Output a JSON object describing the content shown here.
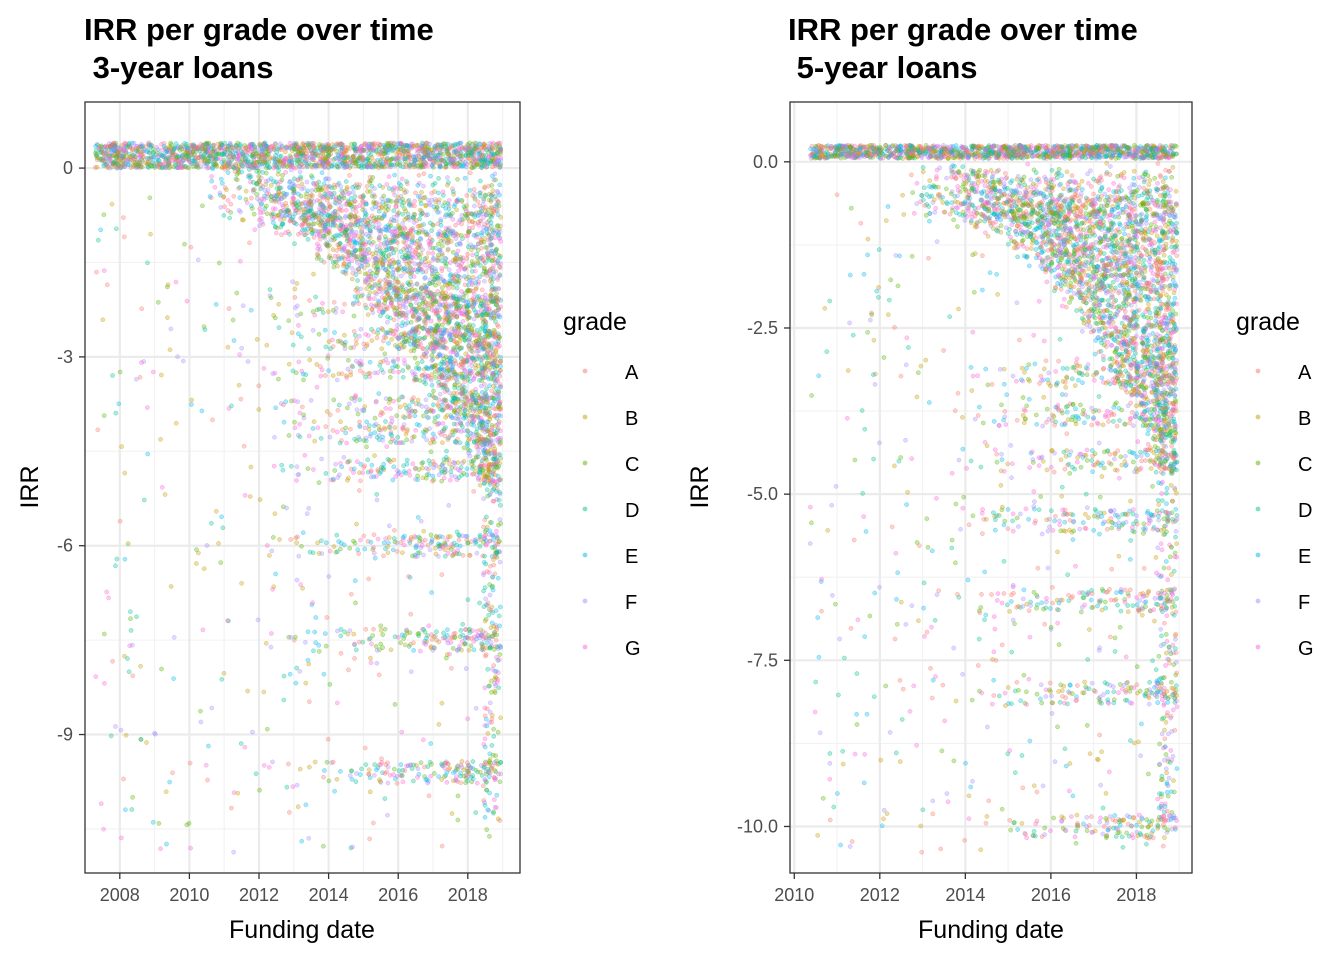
{
  "chart_data": [
    {
      "type": "scatter",
      "title_line1": "IRR per grade over time",
      "title_line2": " 3-year loans",
      "xlabel": "Funding date",
      "ylabel": "IRR",
      "xlim": [
        2007.0,
        2019.5
      ],
      "ylim": [
        -11.2,
        1.05
      ],
      "x_ticks": [
        2008,
        2010,
        2012,
        2014,
        2016,
        2018
      ],
      "x_tick_labels": [
        "2008",
        "2010",
        "2012",
        "2014",
        "2016",
        "2018"
      ],
      "y_ticks": [
        0,
        -3,
        -6,
        -9
      ],
      "y_tick_labels": [
        "0",
        "-3",
        "-6",
        "-9"
      ],
      "y_minor_ticks": [
        1.5,
        -1.5,
        -4.5,
        -7.5,
        -10.5
      ],
      "data_start": 2007.3,
      "data_end": 2018.95,
      "top_bands": [
        0.3,
        0.1
      ],
      "loss_bands": [
        -2.2,
        -2.7,
        -3.2,
        -3.8,
        -4.2,
        -4.8,
        -6.0,
        -7.5,
        -9.6
      ],
      "legend_title": "grade",
      "seed": 11
    },
    {
      "type": "scatter",
      "title_line1": "IRR per grade over time",
      "title_line2": " 5-year loans",
      "xlabel": "Funding date",
      "ylabel": "IRR",
      "xlim": [
        2009.9,
        2019.3
      ],
      "ylim": [
        -10.7,
        0.9
      ],
      "x_ticks": [
        2010,
        2012,
        2014,
        2016,
        2018
      ],
      "x_tick_labels": [
        "2010",
        "2012",
        "2014",
        "2016",
        "2018"
      ],
      "y_ticks": [
        0.0,
        -2.5,
        -5.0,
        -7.5,
        -10.0
      ],
      "y_tick_labels": [
        "0.0",
        "-2.5",
        "-5.0",
        "-7.5",
        "-10.0"
      ],
      "y_minor_ticks": [
        -1.25,
        -3.75,
        -6.25,
        -8.75
      ],
      "data_start": 2010.35,
      "data_end": 2018.95,
      "top_bands": [
        0.15
      ],
      "loss_bands": [
        -3.2,
        -3.8,
        -4.5,
        -5.4,
        -6.6,
        -8.0,
        -10.0
      ],
      "legend_title": "grade",
      "seed": 29
    }
  ],
  "legend": {
    "grades": [
      {
        "label": "A",
        "color": "#F8766D"
      },
      {
        "label": "B",
        "color": "#C49A00"
      },
      {
        "label": "C",
        "color": "#53B400"
      },
      {
        "label": "D",
        "color": "#00C094"
      },
      {
        "label": "E",
        "color": "#00B6EB"
      },
      {
        "label": "F",
        "color": "#A58AFF"
      },
      {
        "label": "G",
        "color": "#FB61D7"
      }
    ]
  }
}
